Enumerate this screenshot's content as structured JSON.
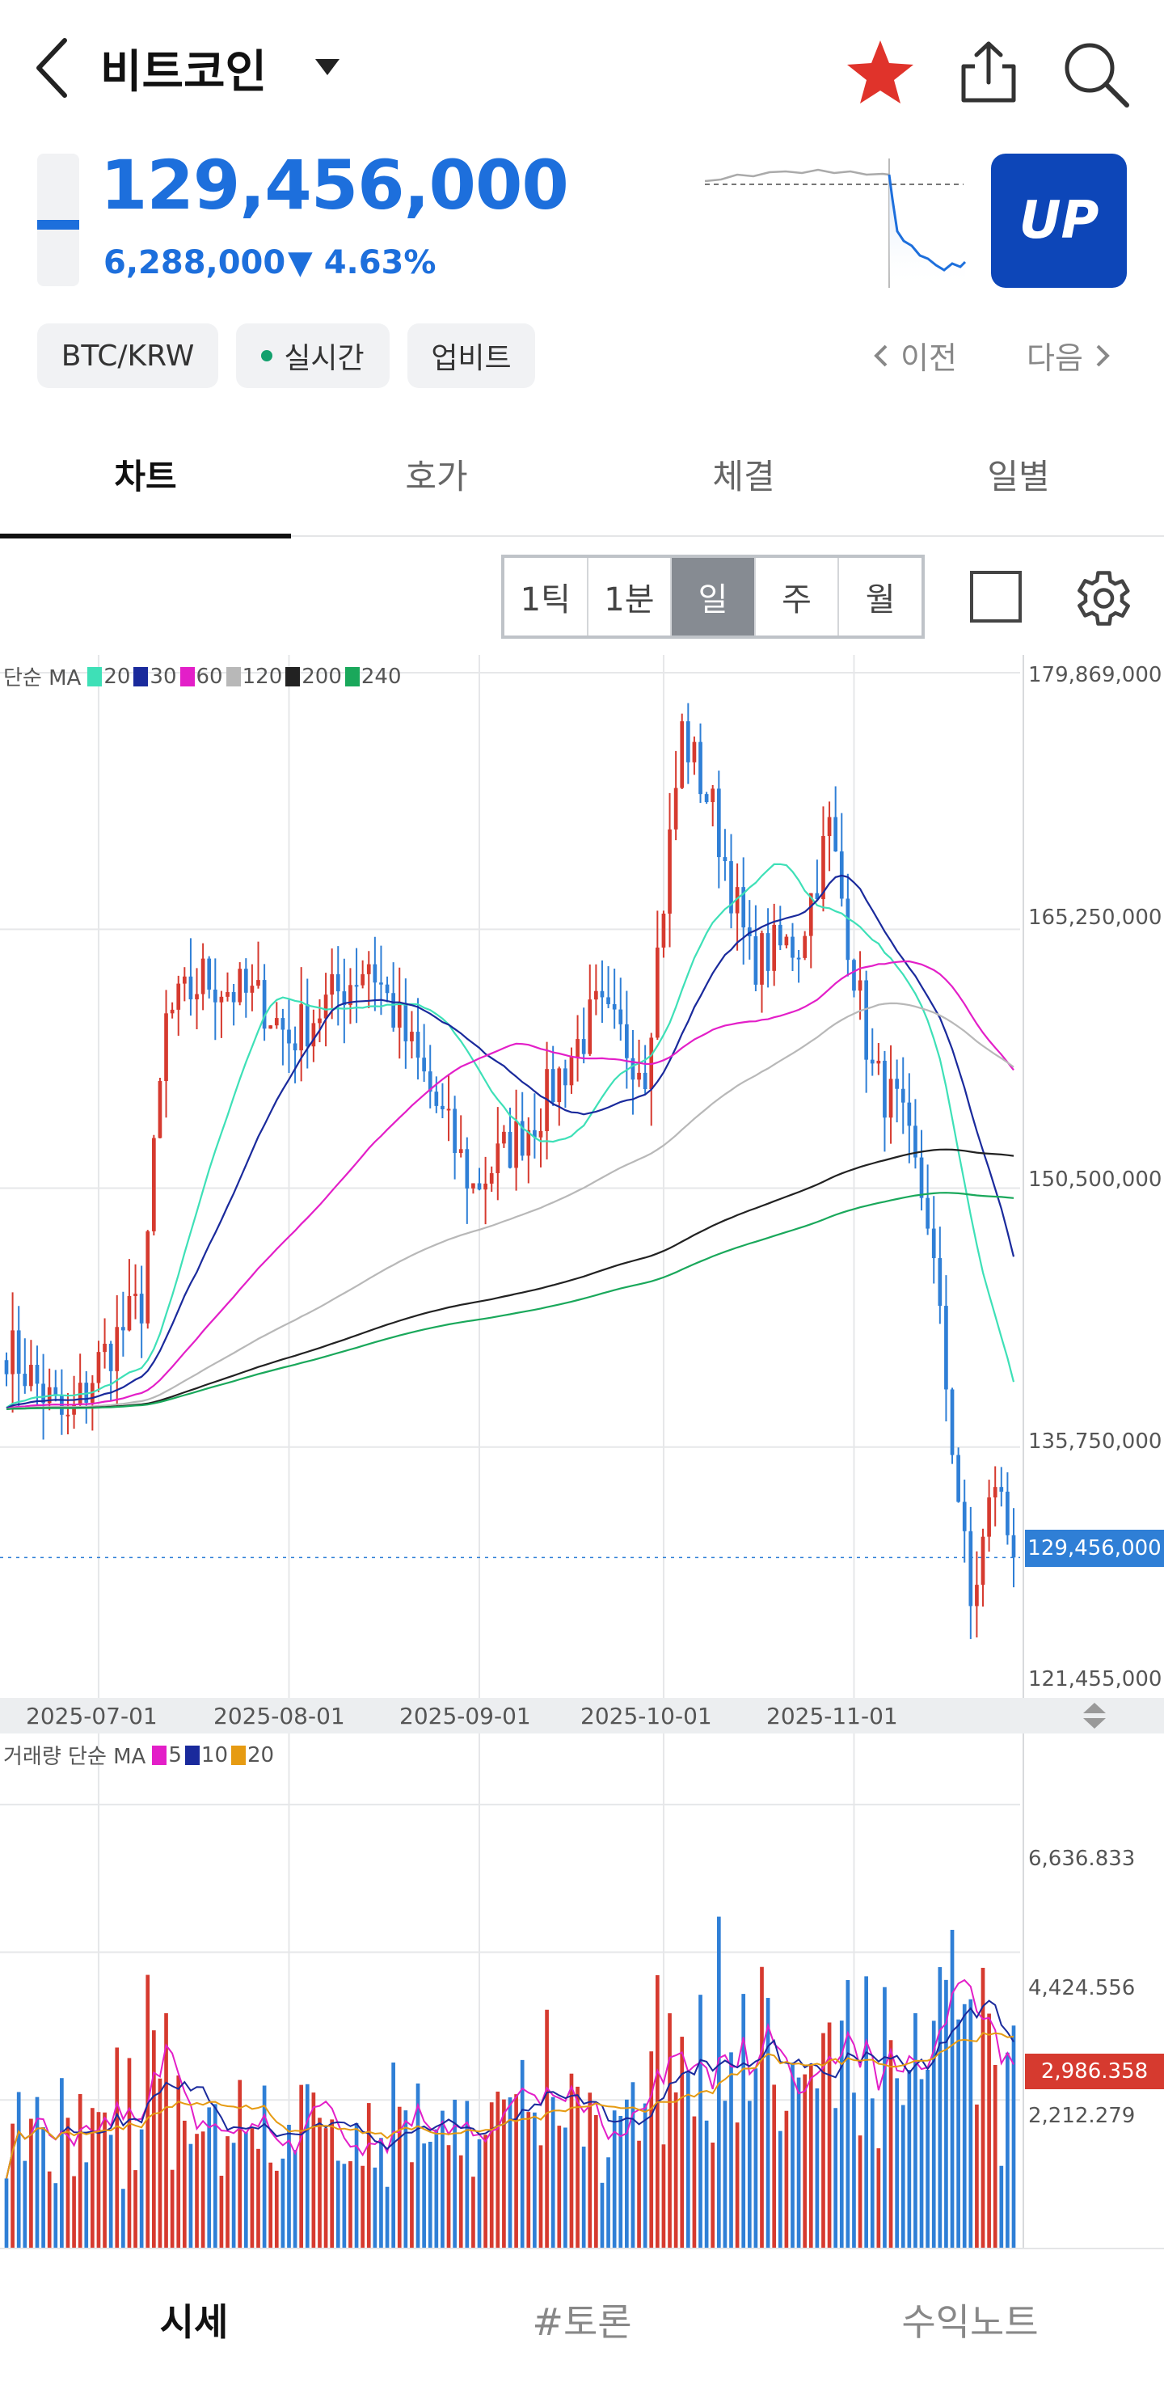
{
  "header": {
    "title": "비트코인",
    "price": "129,456,000",
    "change_amount": "6,288,000",
    "change_pct": "▼ 4.63%",
    "logo_text": "UP"
  },
  "chips": [
    {
      "label": "BTC/KRW"
    },
    {
      "label": "실시간"
    },
    {
      "label": "업비트"
    }
  ],
  "nav": {
    "prev": "이전",
    "next": "다음"
  },
  "tabs": [
    "차트",
    "호가",
    "체결",
    "일별"
  ],
  "periods": [
    "1틱",
    "1분",
    "일",
    "주",
    "월"
  ],
  "selected_period": "일",
  "ma_legend": {
    "prefix": "단순 MA",
    "items": [
      {
        "label": "20",
        "color": "#3ee0b7"
      },
      {
        "label": "30",
        "color": "#1a2a9c"
      },
      {
        "label": "60",
        "color": "#e31fc8"
      },
      {
        "label": "120",
        "color": "#b8b8b8"
      },
      {
        "label": "200",
        "color": "#222222"
      },
      {
        "label": "240",
        "color": "#1aa85b"
      }
    ]
  },
  "volume_legend": {
    "prefix": "거래량 단순 MA",
    "items": [
      {
        "label": "5",
        "color": "#e31fc8"
      },
      {
        "label": "10",
        "color": "#1a2a9c"
      },
      {
        "label": "20",
        "color": "#e69b12"
      }
    ]
  },
  "price_axis": [
    "179,869,000",
    "165,250,000",
    "150,500,000",
    "135,750,000",
    "121,455,000"
  ],
  "current_price_tag": "129,456,000",
  "date_axis": [
    "2025-07-01",
    "2025-08-01",
    "2025-09-01",
    "2025-10-01",
    "2025-11-01"
  ],
  "volume_axis": [
    "6,636.833",
    "4,424.556",
    "2,212.279"
  ],
  "current_volume_tag": "2,986.358",
  "colors": {
    "up": "#d63a2f",
    "down": "#2f7fd6",
    "accent": "#1d6fdc"
  },
  "bottom_tabs": [
    "시세",
    "#토론",
    "수익노트"
  ],
  "chart_data": {
    "type": "candlestick",
    "x_range": [
      "2025-06-16",
      "2025-11-27"
    ],
    "y_range": [
      121455000,
      179869000
    ],
    "close_path": [
      [
        "2025-06-16",
        141500000
      ],
      [
        "2025-06-26",
        137000000
      ],
      [
        "2025-07-01",
        140500000
      ],
      [
        "2025-07-08",
        144000000
      ],
      [
        "2025-07-12",
        160000000
      ],
      [
        "2025-07-18",
        162500000
      ],
      [
        "2025-07-28",
        161000000
      ],
      [
        "2025-08-01",
        159000000
      ],
      [
        "2025-08-10",
        162000000
      ],
      [
        "2025-08-14",
        163500000
      ],
      [
        "2025-08-22",
        157500000
      ],
      [
        "2025-08-31",
        150500000
      ],
      [
        "2025-09-10",
        154500000
      ],
      [
        "2025-09-20",
        160500000
      ],
      [
        "2025-09-28",
        157500000
      ],
      [
        "2025-10-04",
        176500000
      ],
      [
        "2025-10-09",
        172000000
      ],
      [
        "2025-10-15",
        163500000
      ],
      [
        "2025-10-23",
        164500000
      ],
      [
        "2025-10-28",
        171000000
      ],
      [
        "2025-11-04",
        157000000
      ],
      [
        "2025-11-08",
        155000000
      ],
      [
        "2025-11-13",
        149000000
      ],
      [
        "2025-11-20",
        126500000
      ],
      [
        "2025-11-24",
        134000000
      ],
      [
        "2025-11-27",
        129456000
      ]
    ]
  },
  "volume_data": {
    "y_range": [
      0,
      7700
    ]
  }
}
